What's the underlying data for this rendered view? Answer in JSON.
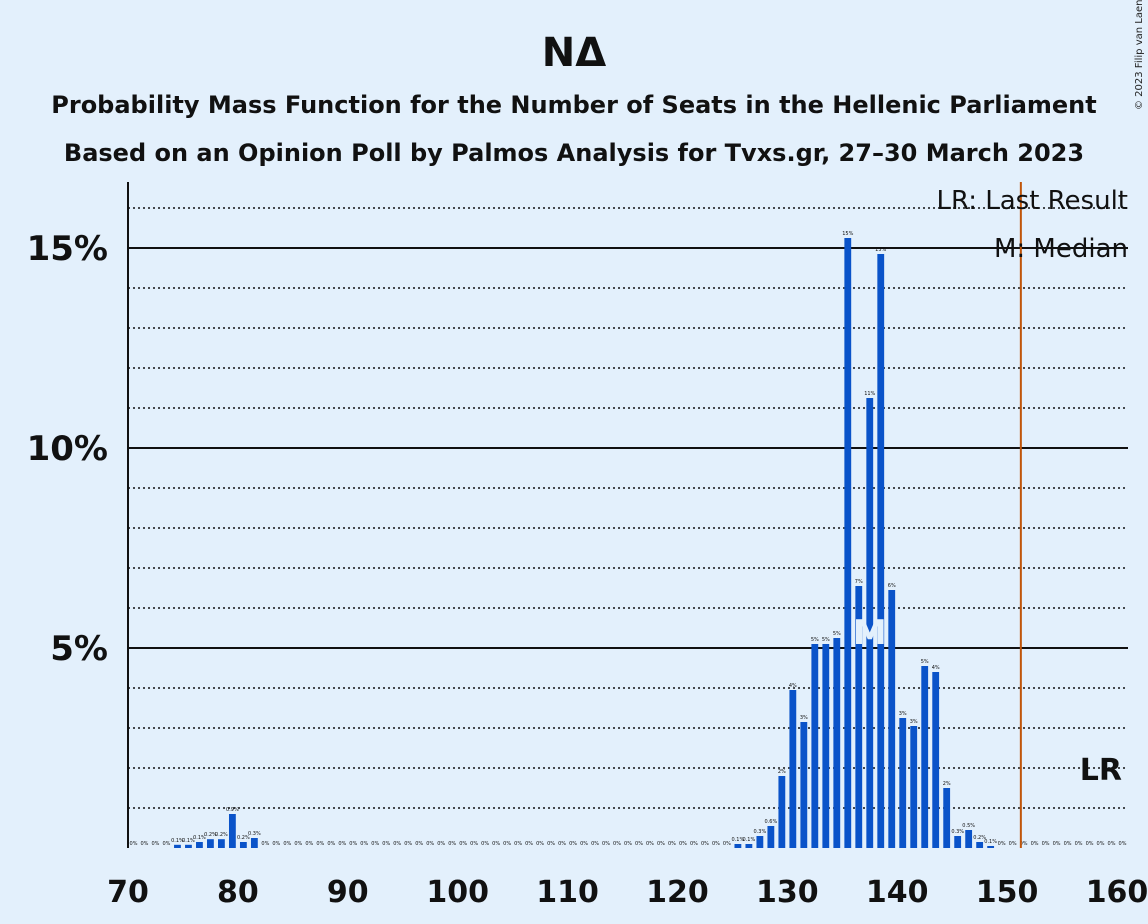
{
  "title": "ΝΔ",
  "subtitle1": "Probability Mass Function for the Number of Seats in the Hellenic Parliament",
  "subtitle2": "Based on an Opinion Poll by Palmos Analysis for Tvxs.gr, 27–30 March 2023",
  "copyright": "© 2023 Filip van Laenen",
  "legend": {
    "last_result": "LR: Last Result",
    "median": "M: Median"
  },
  "markers": {
    "lr_label": "LR",
    "median_label": "M"
  },
  "colors": {
    "bar": "#0a53c9",
    "lr_line": "#c0550a",
    "background": "#e3f0fc"
  },
  "chart_data": {
    "type": "bar",
    "xlabel": "",
    "ylabel": "",
    "xlim": [
      70,
      160
    ],
    "ylim": [
      0,
      16.5
    ],
    "x_ticks": [
      70,
      80,
      90,
      100,
      110,
      120,
      130,
      140,
      150,
      160
    ],
    "y_ticks": [
      {
        "value": 5,
        "label": "5%"
      },
      {
        "value": 10,
        "label": "10%"
      },
      {
        "value": 15,
        "label": "15%"
      }
    ],
    "last_result": 151,
    "median": 137,
    "seats": [
      70,
      71,
      72,
      73,
      74,
      75,
      76,
      77,
      78,
      79,
      80,
      81,
      82,
      83,
      84,
      85,
      86,
      87,
      88,
      89,
      90,
      91,
      92,
      93,
      94,
      95,
      96,
      97,
      98,
      99,
      100,
      101,
      102,
      103,
      104,
      105,
      106,
      107,
      108,
      109,
      110,
      111,
      112,
      113,
      114,
      115,
      116,
      117,
      118,
      119,
      120,
      121,
      122,
      123,
      124,
      125,
      126,
      127,
      128,
      129,
      130,
      131,
      132,
      133,
      134,
      135,
      136,
      137,
      138,
      139,
      140,
      141,
      142,
      143,
      144,
      145,
      146,
      147,
      148,
      149,
      150,
      151,
      152,
      153,
      154,
      155,
      156,
      157,
      158,
      159,
      160
    ],
    "values": [
      0,
      0,
      0,
      0,
      0.08,
      0.08,
      0.15,
      0.22,
      0.22,
      0.85,
      0.15,
      0.25,
      0,
      0,
      0,
      0,
      0,
      0,
      0,
      0,
      0,
      0,
      0,
      0,
      0,
      0,
      0,
      0,
      0,
      0,
      0,
      0,
      0,
      0,
      0,
      0,
      0,
      0,
      0,
      0,
      0,
      0,
      0,
      0,
      0,
      0,
      0,
      0,
      0,
      0,
      0,
      0,
      0,
      0,
      0,
      0.1,
      0.1,
      0.3,
      0.55,
      1.8,
      3.95,
      3.15,
      5.1,
      5.1,
      5.25,
      15.25,
      6.55,
      11.25,
      14.85,
      6.45,
      3.25,
      3.05,
      4.55,
      4.4,
      1.5,
      0.3,
      0.45,
      0.15,
      0.05,
      0,
      0,
      0,
      0,
      0,
      0,
      0,
      0,
      0,
      0,
      0,
      0
    ],
    "value_labels": [
      "0%",
      "0%",
      "0%",
      "0%",
      "0.1%",
      "0.1%",
      "0.1%",
      "0.2%",
      "0.2%",
      "0.9%",
      "0.2%",
      "0.3%",
      "0%",
      "0%",
      "0%",
      "0%",
      "0%",
      "0%",
      "0%",
      "0%",
      "0%",
      "0%",
      "0%",
      "0%",
      "0%",
      "0%",
      "0%",
      "0%",
      "0%",
      "0%",
      "0%",
      "0%",
      "0%",
      "0%",
      "0%",
      "0%",
      "0%",
      "0%",
      "0%",
      "0%",
      "0%",
      "0%",
      "0%",
      "0%",
      "0%",
      "0%",
      "0%",
      "0%",
      "0%",
      "0%",
      "0%",
      "0%",
      "0%",
      "0%",
      "0%",
      "0.1%",
      "0.1%",
      "0.3%",
      "0.6%",
      "2%",
      "4%",
      "3%",
      "5%",
      "5%",
      "5%",
      "15%",
      "7%",
      "11%",
      "15%",
      "6%",
      "3%",
      "3%",
      "5%",
      "4%",
      "2%",
      "0.3%",
      "0.5%",
      "0.2%",
      "0.1%",
      "0%",
      "0%",
      "0%",
      "0%",
      "0%",
      "0%",
      "0%",
      "0%",
      "0%",
      "0%",
      "0%",
      "0%"
    ]
  }
}
